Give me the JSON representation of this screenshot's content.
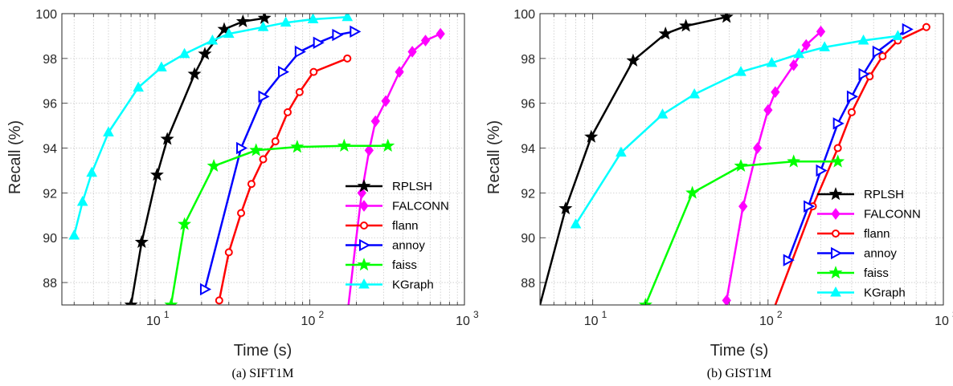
{
  "chart_data": [
    {
      "type": "line",
      "caption": "(a)  SIFT1M",
      "xlabel": "Time (s)",
      "ylabel": "Recall (%)",
      "xscale": "log",
      "xlim": [
        2.5,
        1000
      ],
      "ylim": [
        87,
        100
      ],
      "xticks": [
        10,
        100,
        1000
      ],
      "xtick_labels": [
        "10",
        "10",
        "10"
      ],
      "xtick_exponents": [
        "1",
        "2",
        "3"
      ],
      "yticks": [
        88,
        90,
        92,
        94,
        96,
        98,
        100
      ],
      "grid": true,
      "legend_position": "lower-right",
      "series": [
        {
          "name": "RPLSH",
          "color": "#000000",
          "marker": "star",
          "x": [
            7.0,
            8.2,
            10.3,
            12.0,
            18.0,
            21.0,
            28.0,
            37.0,
            51.0
          ],
          "y": [
            87.0,
            89.8,
            92.8,
            94.4,
            97.3,
            98.2,
            99.3,
            99.65,
            99.8
          ]
        },
        {
          "name": "FALCONN",
          "color": "#ff00ff",
          "marker": "diamond",
          "x": [
            178,
            200,
            217,
            242,
            266,
            310,
            380,
            460,
            560,
            700
          ],
          "y": [
            87.0,
            90.0,
            92.0,
            93.9,
            95.2,
            96.1,
            97.4,
            98.3,
            98.8,
            99.1
          ],
          "marker_skip": [
            0,
            1
          ]
        },
        {
          "name": "flann",
          "color": "#ff0000",
          "marker": "circle",
          "x": [
            26,
            30,
            36,
            42,
            50,
            60,
            72,
            86,
            106,
            175
          ],
          "y": [
            87.2,
            89.35,
            91.1,
            92.4,
            93.5,
            94.3,
            95.6,
            96.5,
            97.4,
            98.0
          ]
        },
        {
          "name": "annoy",
          "color": "#0000ff",
          "marker": "triangle-right",
          "x": [
            21,
            36,
            50,
            67,
            86,
            113,
            150,
            195
          ],
          "y": [
            87.7,
            94.0,
            96.3,
            97.4,
            98.3,
            98.7,
            99.05,
            99.2
          ]
        },
        {
          "name": "faiss",
          "color": "#00ff00",
          "marker": "star",
          "x": [
            12.7,
            15.5,
            24.0,
            45.0,
            83.0,
            167.0,
            320.0
          ],
          "y": [
            87.0,
            90.6,
            93.2,
            93.9,
            94.05,
            94.1,
            94.1
          ]
        },
        {
          "name": "KGraph",
          "color": "#00ffff",
          "marker": "triangle-up",
          "x": [
            3.0,
            3.4,
            3.9,
            5.0,
            7.8,
            11.0,
            15.5,
            23.5,
            30.0,
            50.0,
            70.0,
            105.0,
            175.0
          ],
          "y": [
            90.1,
            91.6,
            92.9,
            94.7,
            96.7,
            97.6,
            98.2,
            98.8,
            99.1,
            99.4,
            99.6,
            99.75,
            99.85
          ]
        }
      ]
    },
    {
      "type": "line",
      "caption": "(b)  GIST1M",
      "xlabel": "Time (s)",
      "ylabel": "Recall (%)",
      "xscale": "log",
      "xlim": [
        5,
        1000
      ],
      "ylim": [
        87,
        100
      ],
      "xticks": [
        10,
        100,
        1000
      ],
      "xtick_labels": [
        "10",
        "10",
        "10"
      ],
      "xtick_exponents": [
        "1",
        "2",
        "3"
      ],
      "yticks": [
        88,
        90,
        92,
        94,
        96,
        98,
        100
      ],
      "grid": true,
      "legend_position": "lower-right",
      "series": [
        {
          "name": "RPLSH",
          "color": "#000000",
          "marker": "star",
          "x": [
            5.0,
            7.0,
            9.8,
            17.0,
            26.0,
            34.0,
            58.0
          ],
          "y": [
            87.0,
            91.3,
            94.5,
            97.9,
            99.1,
            99.45,
            99.85
          ],
          "marker_skip": [
            0
          ]
        },
        {
          "name": "FALCONN",
          "color": "#ff00ff",
          "marker": "diamond",
          "x": [
            58,
            72,
            87,
            100,
            110,
            140,
            165,
            200
          ],
          "y": [
            87.2,
            91.4,
            94.0,
            95.7,
            96.5,
            97.7,
            98.6,
            99.2
          ]
        },
        {
          "name": "flann",
          "color": "#ff0000",
          "marker": "circle",
          "x": [
            110,
            180,
            250,
            300,
            380,
            450,
            550,
            800
          ],
          "y": [
            87.0,
            91.4,
            94.0,
            95.6,
            97.2,
            98.1,
            98.8,
            99.4
          ],
          "marker_skip": [
            0
          ]
        },
        {
          "name": "annoy",
          "color": "#0000ff",
          "marker": "triangle-right",
          "x": [
            130,
            170,
            200,
            250,
            300,
            350,
            420,
            620
          ],
          "y": [
            89.0,
            91.4,
            93.0,
            95.1,
            96.3,
            97.3,
            98.3,
            99.3
          ]
        },
        {
          "name": "faiss",
          "color": "#00ff00",
          "marker": "star",
          "x": [
            20,
            37,
            70,
            140,
            250
          ],
          "y": [
            87.0,
            92.0,
            93.2,
            93.4,
            93.4
          ]
        },
        {
          "name": "KGraph",
          "color": "#00ffff",
          "marker": "triangle-up",
          "x": [
            8.0,
            14.5,
            25.0,
            38.0,
            70.0,
            105.0,
            150.0,
            210.0,
            350.0,
            550.0
          ],
          "y": [
            90.6,
            93.8,
            95.5,
            96.4,
            97.4,
            97.8,
            98.2,
            98.5,
            98.8,
            99.0
          ]
        }
      ]
    }
  ]
}
